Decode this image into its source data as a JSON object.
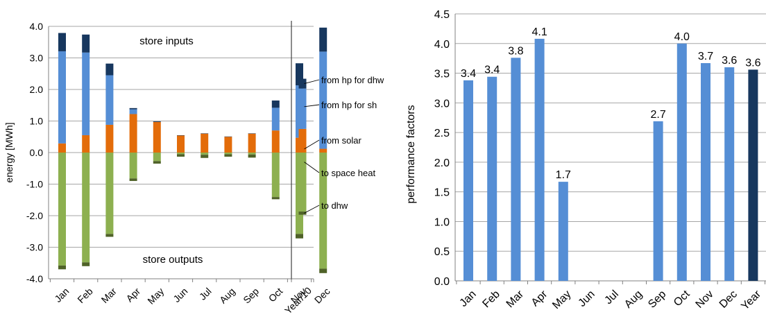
{
  "chart_data": [
    {
      "type": "bar",
      "stacked": true,
      "categories": [
        "Jan",
        "Feb",
        "Mar",
        "Apr",
        "May",
        "Jun",
        "Jul",
        "Aug",
        "Sep",
        "Oct",
        "Nov",
        "Dec",
        "Year/10"
      ],
      "ylabel": "energy [MWh]",
      "ylim": [
        -4.0,
        4.0
      ],
      "yticks": [
        -4.0,
        -3.0,
        -2.0,
        -1.0,
        0.0,
        1.0,
        2.0,
        3.0,
        4.0
      ],
      "grid": true,
      "annotations": {
        "top": "store inputs",
        "bottom": "store outputs"
      },
      "series": [
        {
          "name": "from solar",
          "color": "#e36c0a",
          "values": [
            0.29,
            0.55,
            0.88,
            1.22,
            0.97,
            0.54,
            0.6,
            0.5,
            0.6,
            0.7,
            0.47,
            0.12,
            0.75
          ]
        },
        {
          "name": "from hp for sh",
          "color": "#558ed5",
          "values": [
            2.92,
            2.62,
            1.57,
            0.15,
            0.0,
            0.0,
            0.0,
            0.0,
            0.0,
            0.72,
            1.66,
            3.08,
            1.28
          ]
        },
        {
          "name": "from hp for dhw",
          "color": "#17375e",
          "values": [
            0.58,
            0.57,
            0.37,
            0.04,
            0.02,
            0.01,
            0.01,
            0.01,
            0.01,
            0.23,
            0.7,
            0.76,
            0.31
          ]
        },
        {
          "name": "to space heat",
          "color": "#8db050",
          "values": [
            -3.58,
            -3.48,
            -2.58,
            -0.82,
            -0.27,
            -0.05,
            -0.07,
            -0.05,
            -0.06,
            -1.41,
            -2.58,
            -3.68,
            -1.87
          ]
        },
        {
          "name": "to dhw",
          "color": "#4f6228",
          "values": [
            -0.12,
            -0.12,
            -0.09,
            -0.08,
            -0.08,
            -0.08,
            -0.1,
            -0.08,
            -0.1,
            -0.07,
            -0.14,
            -0.14,
            -0.1
          ]
        }
      ],
      "legend_labels": [
        "from hp for dhw",
        "from hp for sh",
        "from solar",
        "to space heat",
        "to dhw"
      ]
    },
    {
      "type": "bar",
      "categories": [
        "Jan",
        "Feb",
        "Mar",
        "Apr",
        "May",
        "Jun",
        "Jul",
        "Aug",
        "Sep",
        "Oct",
        "Nov",
        "Dec",
        "Year"
      ],
      "values": [
        3.38,
        3.44,
        3.76,
        4.08,
        1.67,
        null,
        null,
        null,
        2.69,
        4.0,
        3.67,
        3.6,
        3.56
      ],
      "data_labels": [
        "3.4",
        "3.4",
        "3.8",
        "4.1",
        "1.7",
        "",
        "",
        "",
        "2.7",
        "4.0",
        "3.7",
        "3.6",
        "3.6"
      ],
      "ylabel": "performance factors",
      "ylim": [
        0.0,
        4.5
      ],
      "yticks": [
        0.0,
        0.5,
        1.0,
        1.5,
        2.0,
        2.5,
        3.0,
        3.5,
        4.0,
        4.5
      ],
      "grid": true,
      "colors": {
        "month": "#558ed5",
        "year": "#17375e"
      }
    }
  ]
}
